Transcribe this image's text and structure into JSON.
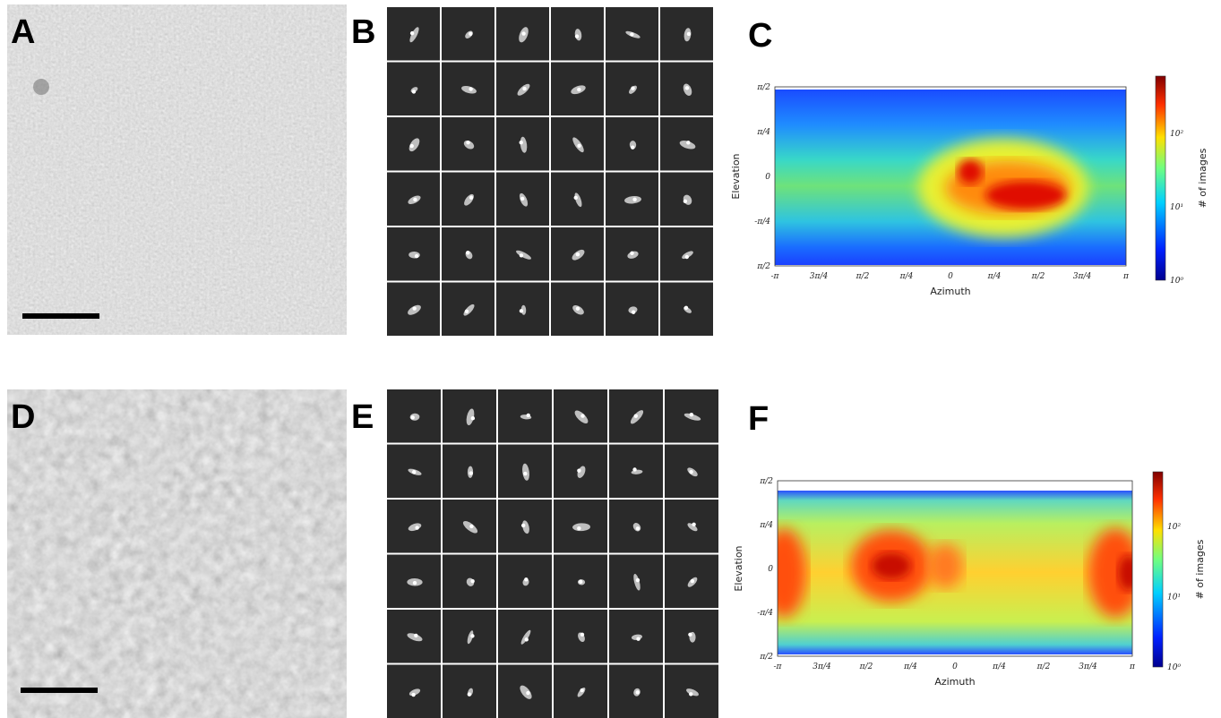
{
  "panel_labels": [
    "A",
    "B",
    "C",
    "D",
    "E",
    "F"
  ],
  "plots": [
    {
      "x_label": "Azimuth",
      "y_label": "Elevation",
      "colorbar_label": "# of images",
      "x_ticks": [
        "-π",
        "3π/4",
        "π/2",
        "π/4",
        "0",
        "π/4",
        "π/2",
        "3π/4",
        "π"
      ],
      "y_ticks": [
        "π/2",
        "π/4",
        "0",
        "-π/4",
        "π/2"
      ],
      "colorbar_ticks": [
        "10⁰",
        "10¹",
        "10²"
      ]
    },
    {
      "x_label": "Azimuth",
      "y_label": "Elevation",
      "colorbar_label": "# of images",
      "x_ticks": [
        "-π",
        "3π/4",
        "π/2",
        "π/4",
        "0",
        "π/4",
        "π/2",
        "3π/4",
        "π"
      ],
      "y_ticks": [
        "π/2",
        "π/4",
        "0",
        "-π/4",
        "π/2"
      ],
      "colorbar_ticks": [
        "10⁰",
        "10¹",
        "10²"
      ]
    }
  ]
}
